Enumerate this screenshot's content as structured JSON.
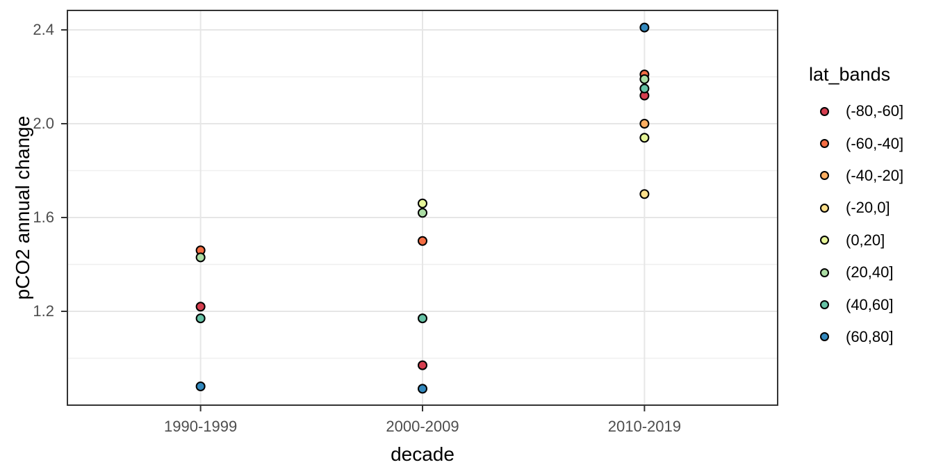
{
  "chart_data": {
    "type": "scatter",
    "title": "",
    "xlabel": "decade",
    "ylabel": "pCO2 annual change",
    "categories": [
      "1990-1999",
      "2000-2009",
      "2010-2019"
    ],
    "y_ticks": [
      2.4,
      2.0,
      1.6,
      1.2
    ],
    "y_minor_gridlines": [
      2.2,
      1.8,
      1.4,
      1.0
    ],
    "y_domain": [
      0.8,
      2.483
    ],
    "grid": true,
    "legend": {
      "title": "lat_bands",
      "position": "right"
    },
    "series": [
      {
        "name": "(-80,-60]",
        "color": "#d53e4f",
        "values": [
          1.22,
          0.97,
          2.12
        ]
      },
      {
        "name": "(-60,-40]",
        "color": "#f46d43",
        "values": [
          1.46,
          1.5,
          2.21
        ]
      },
      {
        "name": "(-40,-20]",
        "color": "#fdae61",
        "values": [
          null,
          null,
          2.0
        ]
      },
      {
        "name": "(-20,0]",
        "color": "#fee08b",
        "values": [
          null,
          null,
          1.7
        ]
      },
      {
        "name": "(0,20]",
        "color": "#e6f598",
        "values": [
          null,
          1.66,
          1.94
        ]
      },
      {
        "name": "(20,40]",
        "color": "#abdda4",
        "values": [
          1.43,
          1.62,
          2.19
        ]
      },
      {
        "name": "(40,60]",
        "color": "#66c2a5",
        "values": [
          1.17,
          1.17,
          2.15
        ]
      },
      {
        "name": "(60,80]",
        "color": "#3288bd",
        "values": [
          0.88,
          0.87,
          2.41
        ]
      }
    ],
    "colors": {
      "background": "#ffffff",
      "grid_major": "#e6e6e6",
      "grid_minor": "#efefef",
      "panel_border": "#333333",
      "tick_mark": "#333333",
      "tick_label": "#4d4d4d",
      "axis_title": "#000000",
      "point_stroke": "#000000"
    }
  }
}
